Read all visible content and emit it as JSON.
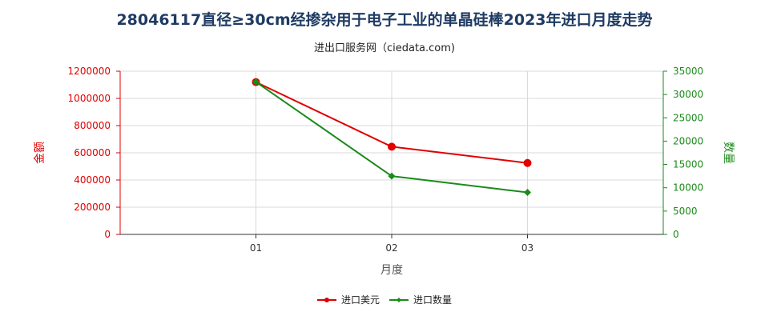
{
  "title": "28046117直径≥30cm经掺杂用于电子工业的单晶硅棒2023年进口月度走势",
  "subtitle": "进出口服务网（ciedata.com)",
  "chart_data": {
    "type": "line",
    "categories": [
      "01",
      "02",
      "03"
    ],
    "xlabel": "月度",
    "ylabel_left": "金额",
    "ylabel_right": "数量",
    "ylim_left": [
      0,
      1200000
    ],
    "ylim_right": [
      0,
      35000
    ],
    "yticks_left": [
      "0",
      "200000",
      "400000",
      "600000",
      "800000",
      "1000000",
      "1200000"
    ],
    "yticks_right": [
      "0",
      "5000",
      "10000",
      "15000",
      "20000",
      "25000",
      "30000",
      "35000"
    ],
    "grid": true,
    "legend_position": "bottom",
    "series": [
      {
        "name": "进口美元",
        "axis": "left",
        "color": "#e00000",
        "marker": "circle",
        "values": [
          1120000,
          645000,
          525000
        ]
      },
      {
        "name": "进口数量",
        "axis": "right",
        "color": "#1a8a1a",
        "marker": "diamond",
        "values": [
          32700,
          12500,
          9000
        ]
      }
    ]
  }
}
